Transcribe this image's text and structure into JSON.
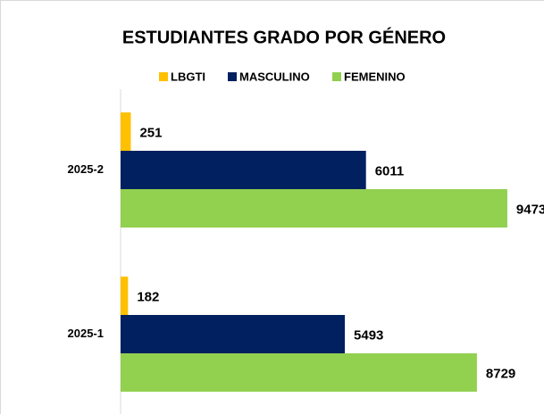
{
  "chart_data": {
    "type": "hbar",
    "title": "ESTUDIANTES GRADO POR GÉNERO",
    "categories": [
      "2025-2",
      "2025-1"
    ],
    "series": [
      {
        "name": "LBGTI",
        "color": "#ffc000",
        "values": [
          251,
          182
        ]
      },
      {
        "name": "MASCULINO",
        "color": "#002060",
        "values": [
          6011,
          5493
        ]
      },
      {
        "name": "FEMENINO",
        "color": "#92d050",
        "values": [
          9473,
          8729
        ]
      }
    ],
    "xlim": [
      0,
      10000
    ],
    "legend": "top"
  }
}
